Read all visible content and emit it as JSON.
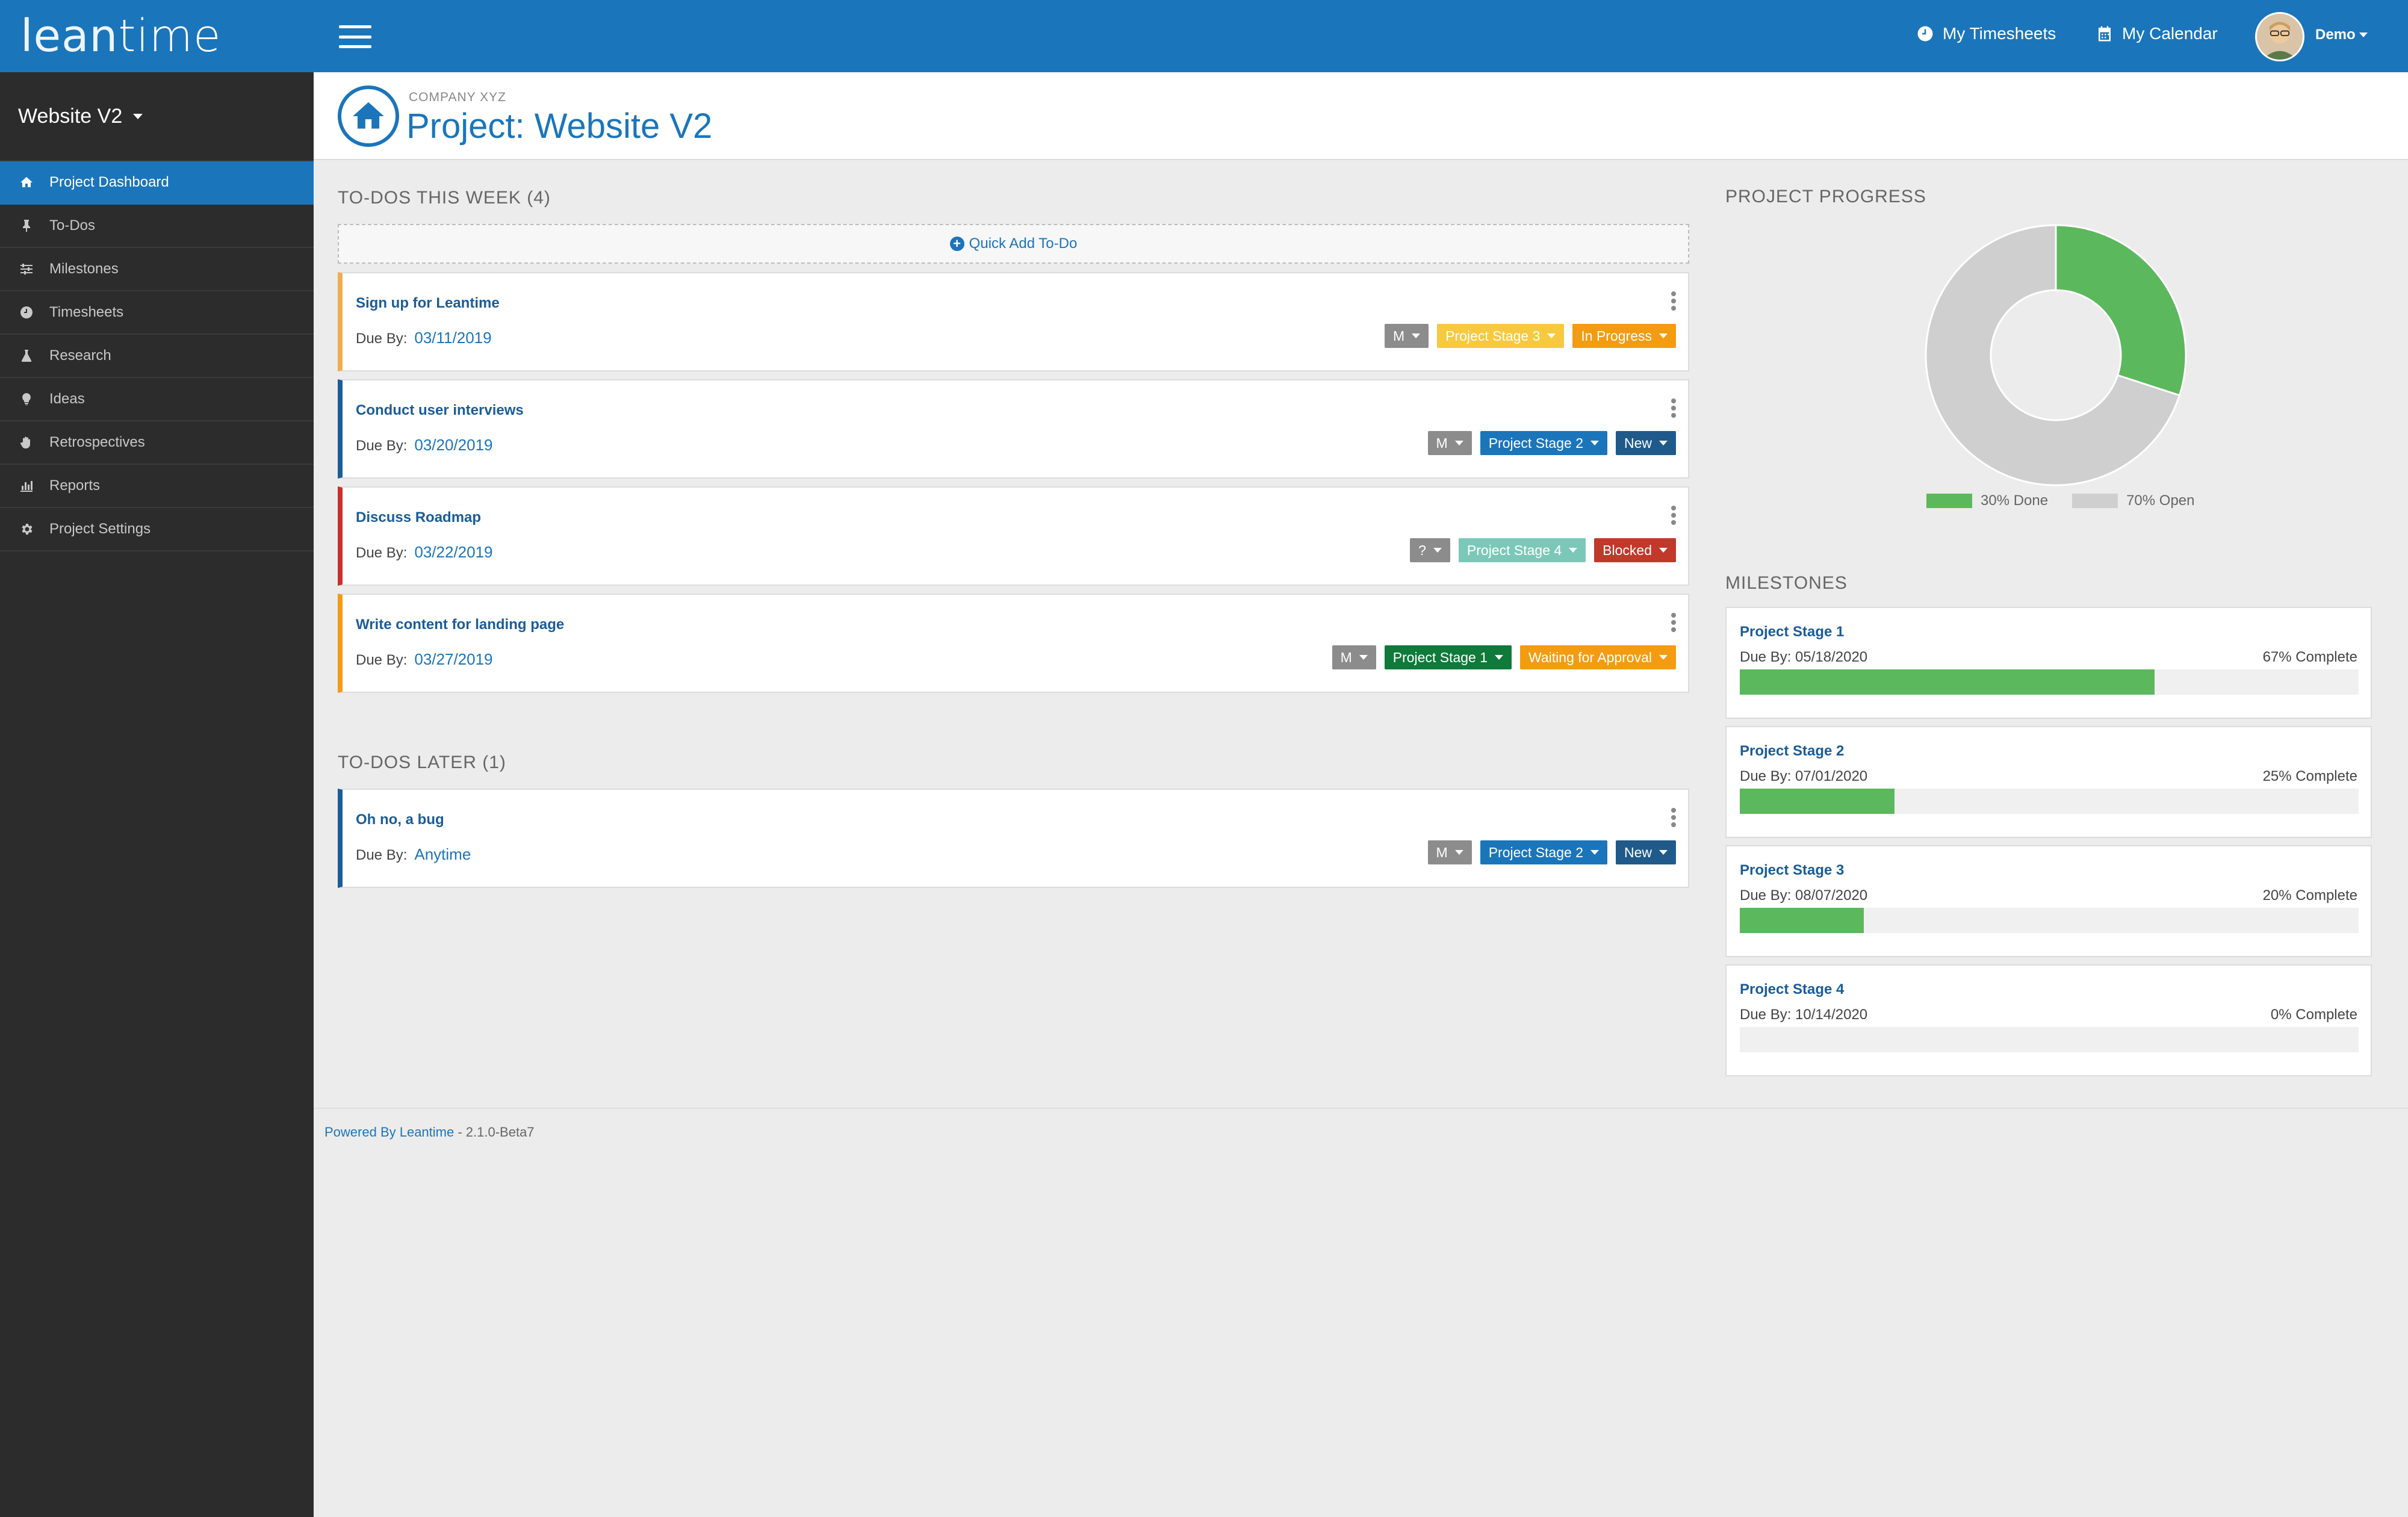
{
  "brand": {
    "logo_light": "lean",
    "logo_bold": "time"
  },
  "sidebar": {
    "project_selector": "Website V2",
    "items": [
      {
        "label": "Project Dashboard",
        "icon": "home-icon",
        "active": true
      },
      {
        "label": "To-Dos",
        "icon": "thumbtack-icon"
      },
      {
        "label": "Milestones",
        "icon": "sliders-icon"
      },
      {
        "label": "Timesheets",
        "icon": "clock-icon"
      },
      {
        "label": "Research",
        "icon": "flask-icon"
      },
      {
        "label": "Ideas",
        "icon": "lightbulb-icon"
      },
      {
        "label": "Retrospectives",
        "icon": "hand-icon"
      },
      {
        "label": "Reports",
        "icon": "bar-chart-icon"
      },
      {
        "label": "Project Settings",
        "icon": "gear-icon"
      }
    ]
  },
  "topbar": {
    "my_timesheets": "My Timesheets",
    "my_calendar": "My Calendar",
    "user": "Demo"
  },
  "header": {
    "company": "COMPANY XYZ",
    "title": "Project: Website V2"
  },
  "todos_week": {
    "heading": "TO-DOS THIS WEEK (4)",
    "quick_add": "Quick Add To-Do",
    "due_label": "Due By:",
    "items": [
      {
        "title": "Sign up for Leantime",
        "due": "03/11/2019",
        "user": "M",
        "milestone": "Project Stage 3",
        "status": "In Progress",
        "border": "#f0ad4e",
        "milestone_color": "#f7c93f",
        "status_color": "#f39c12"
      },
      {
        "title": "Conduct user interviews",
        "due": "03/20/2019",
        "user": "M",
        "milestone": "Project Stage 2",
        "status": "New",
        "border": "#1b5c98",
        "milestone_color": "#1b75bb",
        "status_color": "#1f5a8a"
      },
      {
        "title": "Discuss Roadmap",
        "due": "03/22/2019",
        "user": "?",
        "milestone": "Project Stage 4",
        "status": "Blocked",
        "border": "#c9302c",
        "milestone_color": "#7cc8b8",
        "status_color": "#c0392b"
      },
      {
        "title": "Write content for landing page",
        "due": "03/27/2019",
        "user": "M",
        "milestone": "Project Stage 1",
        "status": "Waiting for Approval",
        "border": "#f39c12",
        "milestone_color": "#0f7a3a",
        "status_color": "#f39c12"
      }
    ]
  },
  "todos_later": {
    "heading": "TO-DOS LATER (1)",
    "items": [
      {
        "title": "Oh no, a bug",
        "due": "Anytime",
        "user": "M",
        "milestone": "Project Stage 2",
        "status": "New",
        "border": "#1b5c98",
        "milestone_color": "#1b75bb",
        "status_color": "#1f5a8a"
      }
    ]
  },
  "progress": {
    "heading": "PROJECT PROGRESS",
    "done_pct": 30,
    "done_label": "30% Done",
    "open_label": "70% Open",
    "done_color": "#5cb85c",
    "open_color": "#cfcfcf"
  },
  "milestones": {
    "heading": "MILESTONES",
    "items": [
      {
        "name": "Project Stage 1",
        "due": "Due By: 05/18/2020",
        "pct_label": "67% Complete",
        "pct": 67
      },
      {
        "name": "Project Stage 2",
        "due": "Due By: 07/01/2020",
        "pct_label": "25% Complete",
        "pct": 25
      },
      {
        "name": "Project Stage 3",
        "due": "Due By: 08/07/2020",
        "pct_label": "20% Complete",
        "pct": 20
      },
      {
        "name": "Project Stage 4",
        "due": "Due By: 10/14/2020",
        "pct_label": "0% Complete",
        "pct": 0
      }
    ]
  },
  "footer": {
    "link": "Powered By Leantime",
    "version": " - 2.1.0-Beta7"
  }
}
